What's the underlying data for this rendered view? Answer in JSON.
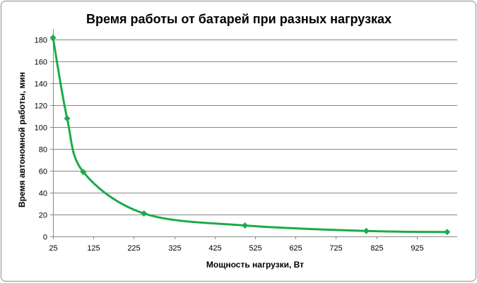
{
  "colors": {
    "series": "#1aab4a",
    "grid": "#868686"
  },
  "chart_data": {
    "type": "scatter",
    "title": "Время работы  от батарей  при разных  нагрузках",
    "xlabel": "Мощность нагрузки, Вт",
    "ylabel": "Время автономной работы, мин",
    "xlim": [
      25,
      1025
    ],
    "ylim": [
      0,
      190
    ],
    "xticks": [
      25,
      125,
      225,
      325,
      425,
      525,
      625,
      725,
      825,
      925
    ],
    "yticks": [
      0,
      20,
      40,
      60,
      80,
      100,
      120,
      140,
      160,
      180
    ],
    "grid": true,
    "legend": "none",
    "smooth_line": true,
    "marker": "diamond",
    "series": [
      {
        "x": [
          25,
          60,
          100,
          250,
          500,
          800,
          1000
        ],
        "y": [
          182,
          108,
          59,
          21,
          10,
          5,
          4
        ]
      }
    ]
  }
}
